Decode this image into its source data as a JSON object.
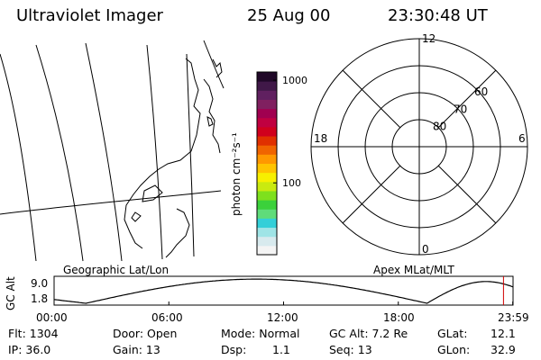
{
  "header": {
    "title": "Ultraviolet Imager",
    "date": "25 Aug 00",
    "time": "23:30:48 UT"
  },
  "colorbar": {
    "label": "photon cm⁻²s⁻¹",
    "ticks": [
      {
        "value": 1000,
        "label": "1000"
      },
      {
        "value": 100,
        "label": "100"
      }
    ],
    "range": [
      20,
      1200
    ],
    "colors": [
      "#f4f4f4",
      "#d8eaee",
      "#9fe4e6",
      "#33cfd8",
      "#5fdc7a",
      "#3bd13b",
      "#7ee01d",
      "#c9ea10",
      "#f7f000",
      "#ffc400",
      "#ff9800",
      "#f06400",
      "#e03000",
      "#d0001d",
      "#c00040",
      "#a00050",
      "#802060",
      "#602060",
      "#401848",
      "#200828"
    ]
  },
  "polar_plot": {
    "mlt_labels": [
      {
        "mlt": 12,
        "label": "12"
      },
      {
        "mlt": 18,
        "label": "18"
      },
      {
        "mlt": 6,
        "label": "6"
      },
      {
        "mlt": 0,
        "label": "0"
      }
    ],
    "lat_rings": [
      {
        "lat": 60,
        "label": "60"
      },
      {
        "lat": 70,
        "label": "70"
      },
      {
        "lat": 80,
        "label": "80"
      }
    ],
    "outer_lat": 50
  },
  "labels": {
    "geo": "Geographic Lat/Lon",
    "apex": "Apex MLat/MLT",
    "gc_alt_axis": "GC Alt"
  },
  "alt_chart": {
    "yticks": [
      "9.0",
      "1.8"
    ],
    "xticks": [
      "00:00",
      "06:00",
      "12:00",
      "18:00",
      "23:59"
    ],
    "ylim": [
      1.8,
      9.0
    ],
    "current_time": "23:30"
  },
  "info": {
    "flt": "Flt: 1304",
    "ip": "IP: 36.0",
    "door": "Door: Open",
    "gain": "Gain: 13",
    "mode": "Mode: Normal",
    "dsp_label": "Dsp:",
    "dsp_value": "1.1",
    "gcalt": "GC Alt: 7.2 Re",
    "seq": "Seq: 13",
    "glat_label": "GLat:",
    "glat_value": "12.1",
    "glon_label": "GLon:",
    "glon_value": "32.9"
  }
}
